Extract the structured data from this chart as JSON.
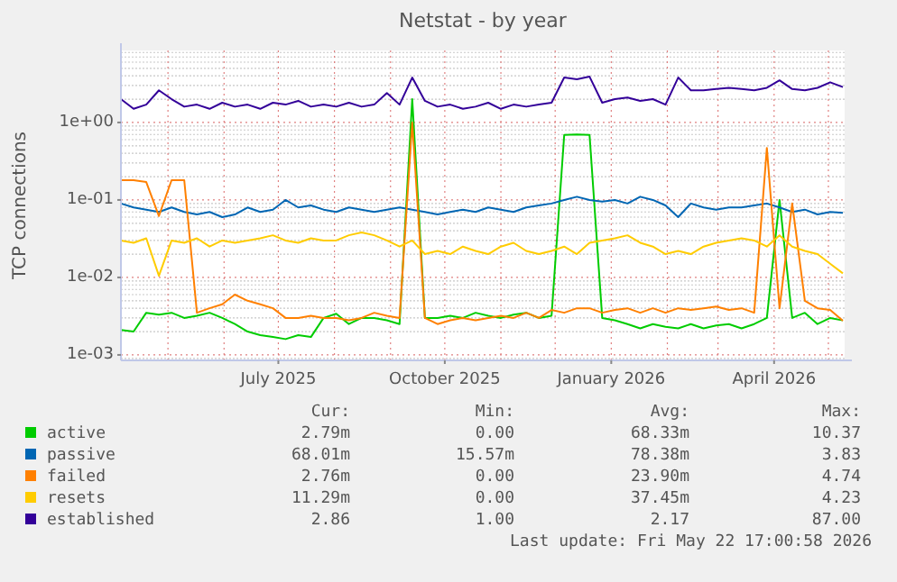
{
  "chart_data": {
    "type": "line",
    "title": "Netstat - by year",
    "ylabel": "TCP connections",
    "log": true,
    "grid": true,
    "legend": "bottom",
    "marker": "none",
    "line_style": "solid",
    "x": [
      "2025-04-05",
      "2025-04-12",
      "2025-04-19",
      "2025-04-26",
      "2025-05-03",
      "2025-05-10",
      "2025-05-17",
      "2025-05-24",
      "2025-05-31",
      "2025-06-07",
      "2025-06-14",
      "2025-06-21",
      "2025-06-28",
      "2025-07-05",
      "2025-07-12",
      "2025-07-19",
      "2025-07-26",
      "2025-08-02",
      "2025-08-09",
      "2025-08-16",
      "2025-08-23",
      "2025-08-30",
      "2025-09-06",
      "2025-09-13",
      "2025-09-20",
      "2025-09-27",
      "2025-10-04",
      "2025-10-11",
      "2025-10-18",
      "2025-10-25",
      "2025-11-01",
      "2025-11-08",
      "2025-11-15",
      "2025-11-22",
      "2025-11-29",
      "2025-12-06",
      "2025-12-13",
      "2025-12-20",
      "2025-12-27",
      "2026-01-03",
      "2026-01-10",
      "2026-01-17",
      "2026-01-24",
      "2026-01-31",
      "2026-02-07",
      "2026-02-14",
      "2026-02-21",
      "2026-02-28",
      "2026-03-07",
      "2026-03-14",
      "2026-03-21",
      "2026-03-28",
      "2026-04-04",
      "2026-04-11",
      "2026-04-18",
      "2026-04-25",
      "2026-05-02",
      "2026-05-09"
    ],
    "xlim": [
      "2025-04-05",
      "2026-05-10"
    ],
    "xticks": [
      {
        "value": "2025-07-01",
        "label": "July 2025"
      },
      {
        "value": "2025-10-01",
        "label": "October 2025"
      },
      {
        "value": "2026-01-01",
        "label": "January 2026"
      },
      {
        "value": "2026-04-01",
        "label": "April 2026"
      }
    ],
    "ylim": [
      0.00085,
      8.5
    ],
    "yticks": [
      {
        "value": 0.001,
        "label": "1e-03"
      },
      {
        "value": 0.01,
        "label": "1e-02"
      },
      {
        "value": 0.1,
        "label": "1e-01"
      },
      {
        "value": 1,
        "label": "1e+00"
      }
    ],
    "series": [
      {
        "name": "active",
        "color": "#00cc00",
        "values": [
          0.0021,
          0.002,
          0.0035,
          0.0033,
          0.0035,
          0.003,
          0.0032,
          0.0035,
          0.003,
          0.0025,
          0.002,
          0.0018,
          0.0017,
          0.0016,
          0.0018,
          0.0017,
          0.003,
          0.0034,
          0.0025,
          0.003,
          0.003,
          0.0028,
          0.0025,
          2.0,
          0.003,
          0.003,
          0.0032,
          0.003,
          0.0035,
          0.0032,
          0.003,
          0.0033,
          0.0035,
          0.003,
          0.0032,
          0.69,
          0.7,
          0.69,
          0.003,
          0.0028,
          0.0025,
          0.0022,
          0.0025,
          0.0023,
          0.0022,
          0.0025,
          0.0022,
          0.0024,
          0.0025,
          0.0022,
          0.0025,
          0.003,
          0.1,
          0.003,
          0.0035,
          0.0025,
          0.003,
          0.00279
        ]
      },
      {
        "name": "passive",
        "color": "#0066b3",
        "values": [
          0.09,
          0.08,
          0.075,
          0.07,
          0.08,
          0.07,
          0.065,
          0.07,
          0.06,
          0.065,
          0.08,
          0.07,
          0.075,
          0.1,
          0.08,
          0.085,
          0.075,
          0.07,
          0.08,
          0.075,
          0.07,
          0.075,
          0.08,
          0.075,
          0.07,
          0.065,
          0.07,
          0.075,
          0.07,
          0.08,
          0.075,
          0.07,
          0.08,
          0.085,
          0.09,
          0.1,
          0.11,
          0.1,
          0.095,
          0.1,
          0.09,
          0.11,
          0.1,
          0.085,
          0.06,
          0.09,
          0.08,
          0.075,
          0.08,
          0.08,
          0.085,
          0.09,
          0.08,
          0.07,
          0.075,
          0.065,
          0.07,
          0.068
        ]
      },
      {
        "name": "failed",
        "color": "#ff8000",
        "values": [
          0.18,
          0.18,
          0.17,
          0.062,
          0.18,
          0.18,
          0.0035,
          0.004,
          0.0045,
          0.006,
          0.005,
          0.0045,
          0.004,
          0.003,
          0.003,
          0.0032,
          0.003,
          0.003,
          0.0028,
          0.003,
          0.0035,
          0.0032,
          0.003,
          1.0,
          0.003,
          0.0025,
          0.0028,
          0.003,
          0.0028,
          0.003,
          0.0032,
          0.003,
          0.0035,
          0.003,
          0.0038,
          0.0035,
          0.004,
          0.004,
          0.0035,
          0.0038,
          0.004,
          0.0035,
          0.004,
          0.0035,
          0.004,
          0.0038,
          0.004,
          0.0042,
          0.0038,
          0.004,
          0.0035,
          0.47,
          0.004,
          0.09,
          0.005,
          0.004,
          0.0038,
          0.00276
        ]
      },
      {
        "name": "resets",
        "color": "#ffcc00",
        "values": [
          0.03,
          0.028,
          0.032,
          0.0105,
          0.03,
          0.028,
          0.032,
          0.025,
          0.03,
          0.028,
          0.03,
          0.032,
          0.035,
          0.03,
          0.028,
          0.032,
          0.03,
          0.03,
          0.035,
          0.038,
          0.035,
          0.03,
          0.025,
          0.03,
          0.02,
          0.022,
          0.02,
          0.025,
          0.022,
          0.02,
          0.025,
          0.028,
          0.022,
          0.02,
          0.022,
          0.025,
          0.02,
          0.028,
          0.03,
          0.032,
          0.035,
          0.028,
          0.025,
          0.02,
          0.022,
          0.02,
          0.025,
          0.028,
          0.03,
          0.032,
          0.03,
          0.025,
          0.035,
          0.025,
          0.022,
          0.02,
          0.015,
          0.0113
        ]
      },
      {
        "name": "established",
        "color": "#330099",
        "values": [
          2.0,
          1.5,
          1.7,
          2.6,
          2.0,
          1.6,
          1.7,
          1.5,
          1.8,
          1.6,
          1.7,
          1.5,
          1.8,
          1.7,
          1.9,
          1.6,
          1.7,
          1.6,
          1.8,
          1.6,
          1.7,
          2.4,
          1.7,
          3.8,
          1.9,
          1.6,
          1.7,
          1.5,
          1.6,
          1.8,
          1.5,
          1.7,
          1.6,
          1.7,
          1.8,
          3.8,
          3.6,
          3.9,
          1.8,
          2.0,
          2.1,
          1.9,
          2.0,
          1.7,
          3.8,
          2.6,
          2.6,
          2.7,
          2.8,
          2.7,
          2.6,
          2.8,
          3.5,
          2.7,
          2.6,
          2.8,
          3.3,
          2.86
        ]
      }
    ],
    "annotations": [
      "Cur:",
      "Min:",
      "Avg:",
      "Max:",
      "2.79m",
      "0.00",
      "68.33m",
      "10.37",
      "68.01m",
      "15.57m",
      "78.38m",
      "3.83",
      "2.76m",
      "0.00",
      "23.90m",
      "4.74",
      "11.29m",
      "0.00",
      "37.45m",
      "4.23",
      "2.86",
      "1.00",
      "2.17",
      "87.00",
      "Last update: Fri May 22 17:00:58 2026"
    ]
  }
}
